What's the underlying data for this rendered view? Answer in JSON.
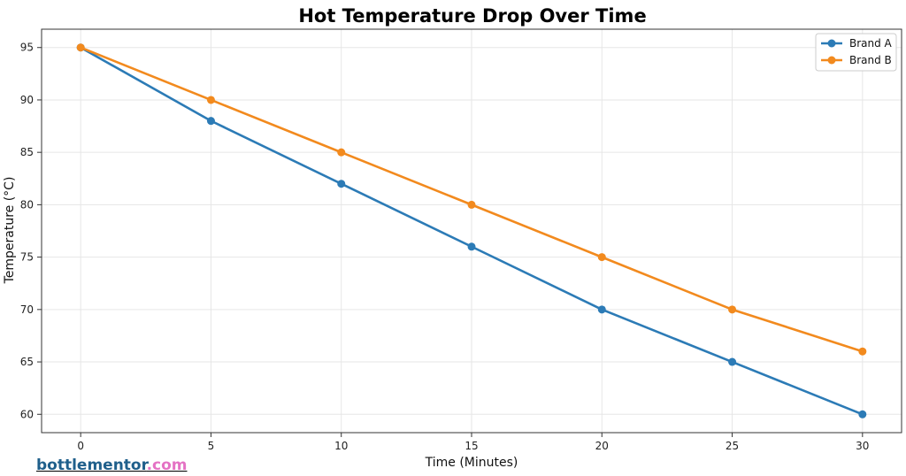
{
  "chart_data": {
    "type": "line",
    "title": "Hot Temperature Drop Over Time",
    "xlabel": "Time (Minutes)",
    "ylabel": "Temperature (°C)",
    "x": [
      0,
      5,
      10,
      15,
      20,
      25,
      30
    ],
    "xticks": [
      0,
      5,
      10,
      15,
      20,
      25,
      30
    ],
    "yticks": [
      60,
      65,
      70,
      75,
      80,
      85,
      90,
      95
    ],
    "xlim": [
      -1.5,
      31.5
    ],
    "ylim": [
      58.25,
      96.75
    ],
    "grid": true,
    "legend_position": "top-right",
    "series": [
      {
        "name": "Brand A",
        "color": "#2c7bb6",
        "values": [
          95,
          88,
          82,
          76,
          70,
          65,
          60
        ]
      },
      {
        "name": "Brand B",
        "color": "#f28a1e",
        "values": [
          95,
          90,
          85,
          80,
          75,
          70,
          66
        ]
      }
    ]
  },
  "watermark": {
    "name": "bottlementor",
    "tld": ".com"
  }
}
